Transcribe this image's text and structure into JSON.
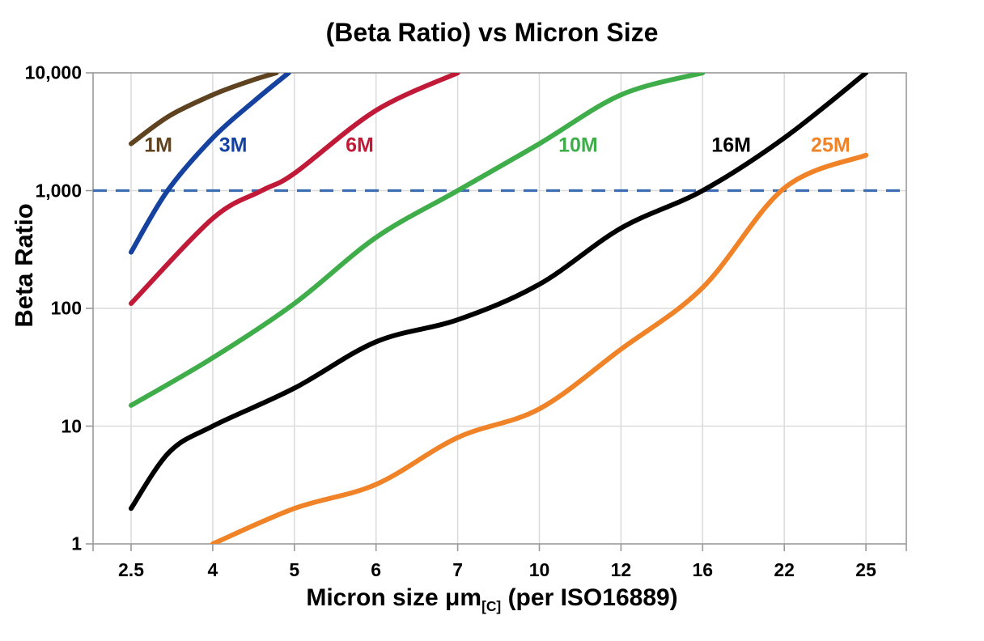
{
  "title": "(Beta Ratio) vs Micron Size",
  "y_axis": {
    "title": "Beta Ratio",
    "tick_labels": [
      "10,000",
      "1,000",
      "100",
      "10",
      "1"
    ],
    "tick_values": [
      10000,
      1000,
      100,
      10,
      1
    ]
  },
  "x_axis": {
    "title_main": "Micron size μm",
    "title_sub": "[C]",
    "title_suffix": " (per ISO16889)",
    "tick_labels": [
      "2.5",
      "4",
      "5",
      "6",
      "7",
      "10",
      "12",
      "16",
      "22",
      "25"
    ]
  },
  "chart_data": {
    "type": "line",
    "title": "(Beta Ratio) vs Micron Size",
    "xlabel": "Micron size μm[C] (per ISO16889)",
    "ylabel": "Beta Ratio",
    "x_scale": "categorical-equidistant",
    "x_categories": [
      2.5,
      4,
      5,
      6,
      7,
      10,
      12,
      16,
      22,
      25
    ],
    "y_scale": "log",
    "ylim": [
      1,
      10000
    ],
    "grid": true,
    "grid_color": "#dbdbdb",
    "axis_color": "#999999",
    "reference_line": {
      "y": 1000,
      "style": "dashed",
      "color": "#3d6eb4"
    },
    "legend_position": "labels-on-chart",
    "series": [
      {
        "name": "1M",
        "color": "#5f4321",
        "label_pos": {
          "x": 3.0,
          "y": 2400
        },
        "points": [
          [
            2.5,
            2500
          ],
          [
            3.2,
            4300
          ],
          [
            4,
            6500
          ],
          [
            4.45,
            8500
          ],
          [
            4.78,
            10000
          ]
        ]
      },
      {
        "name": "3M",
        "color": "#15419f",
        "label_pos": {
          "x": 4.25,
          "y": 2400
        },
        "points": [
          [
            2.5,
            300
          ],
          [
            3.17,
            1000
          ],
          [
            4,
            2800
          ],
          [
            4.5,
            5700
          ],
          [
            4.93,
            10000
          ]
        ]
      },
      {
        "name": "6M",
        "color": "#c11a38",
        "label_pos": {
          "x": 5.8,
          "y": 2400
        },
        "points": [
          [
            2.5,
            110
          ],
          [
            4,
            580
          ],
          [
            4.6,
            1000
          ],
          [
            5,
            1400
          ],
          [
            6,
            4800
          ],
          [
            7,
            10000
          ]
        ]
      },
      {
        "name": "10M",
        "color": "#3fad49",
        "label_pos": {
          "x": 10.95,
          "y": 2400
        },
        "points": [
          [
            2.5,
            15
          ],
          [
            4,
            38
          ],
          [
            5,
            110
          ],
          [
            6,
            400
          ],
          [
            7,
            1000
          ],
          [
            10,
            2500
          ],
          [
            12,
            6500
          ],
          [
            16,
            10000
          ]
        ]
      },
      {
        "name": "16M",
        "color": "#000000",
        "label_pos": {
          "x": 18.1,
          "y": 2400
        },
        "points": [
          [
            2.5,
            2
          ],
          [
            3.2,
            6
          ],
          [
            4,
            10
          ],
          [
            5,
            21
          ],
          [
            6,
            52
          ],
          [
            7,
            80
          ],
          [
            10,
            160
          ],
          [
            12,
            480
          ],
          [
            16,
            1000
          ],
          [
            22,
            2800
          ],
          [
            25,
            10000
          ]
        ]
      },
      {
        "name": "25M",
        "color": "#f08327",
        "label_pos": {
          "x": 23.7,
          "y": 2400
        },
        "points": [
          [
            4,
            1
          ],
          [
            5,
            2
          ],
          [
            6,
            3.2
          ],
          [
            7,
            8
          ],
          [
            10,
            14
          ],
          [
            12,
            45
          ],
          [
            16,
            150
          ],
          [
            22,
            1050
          ],
          [
            25,
            2000
          ]
        ]
      }
    ]
  }
}
